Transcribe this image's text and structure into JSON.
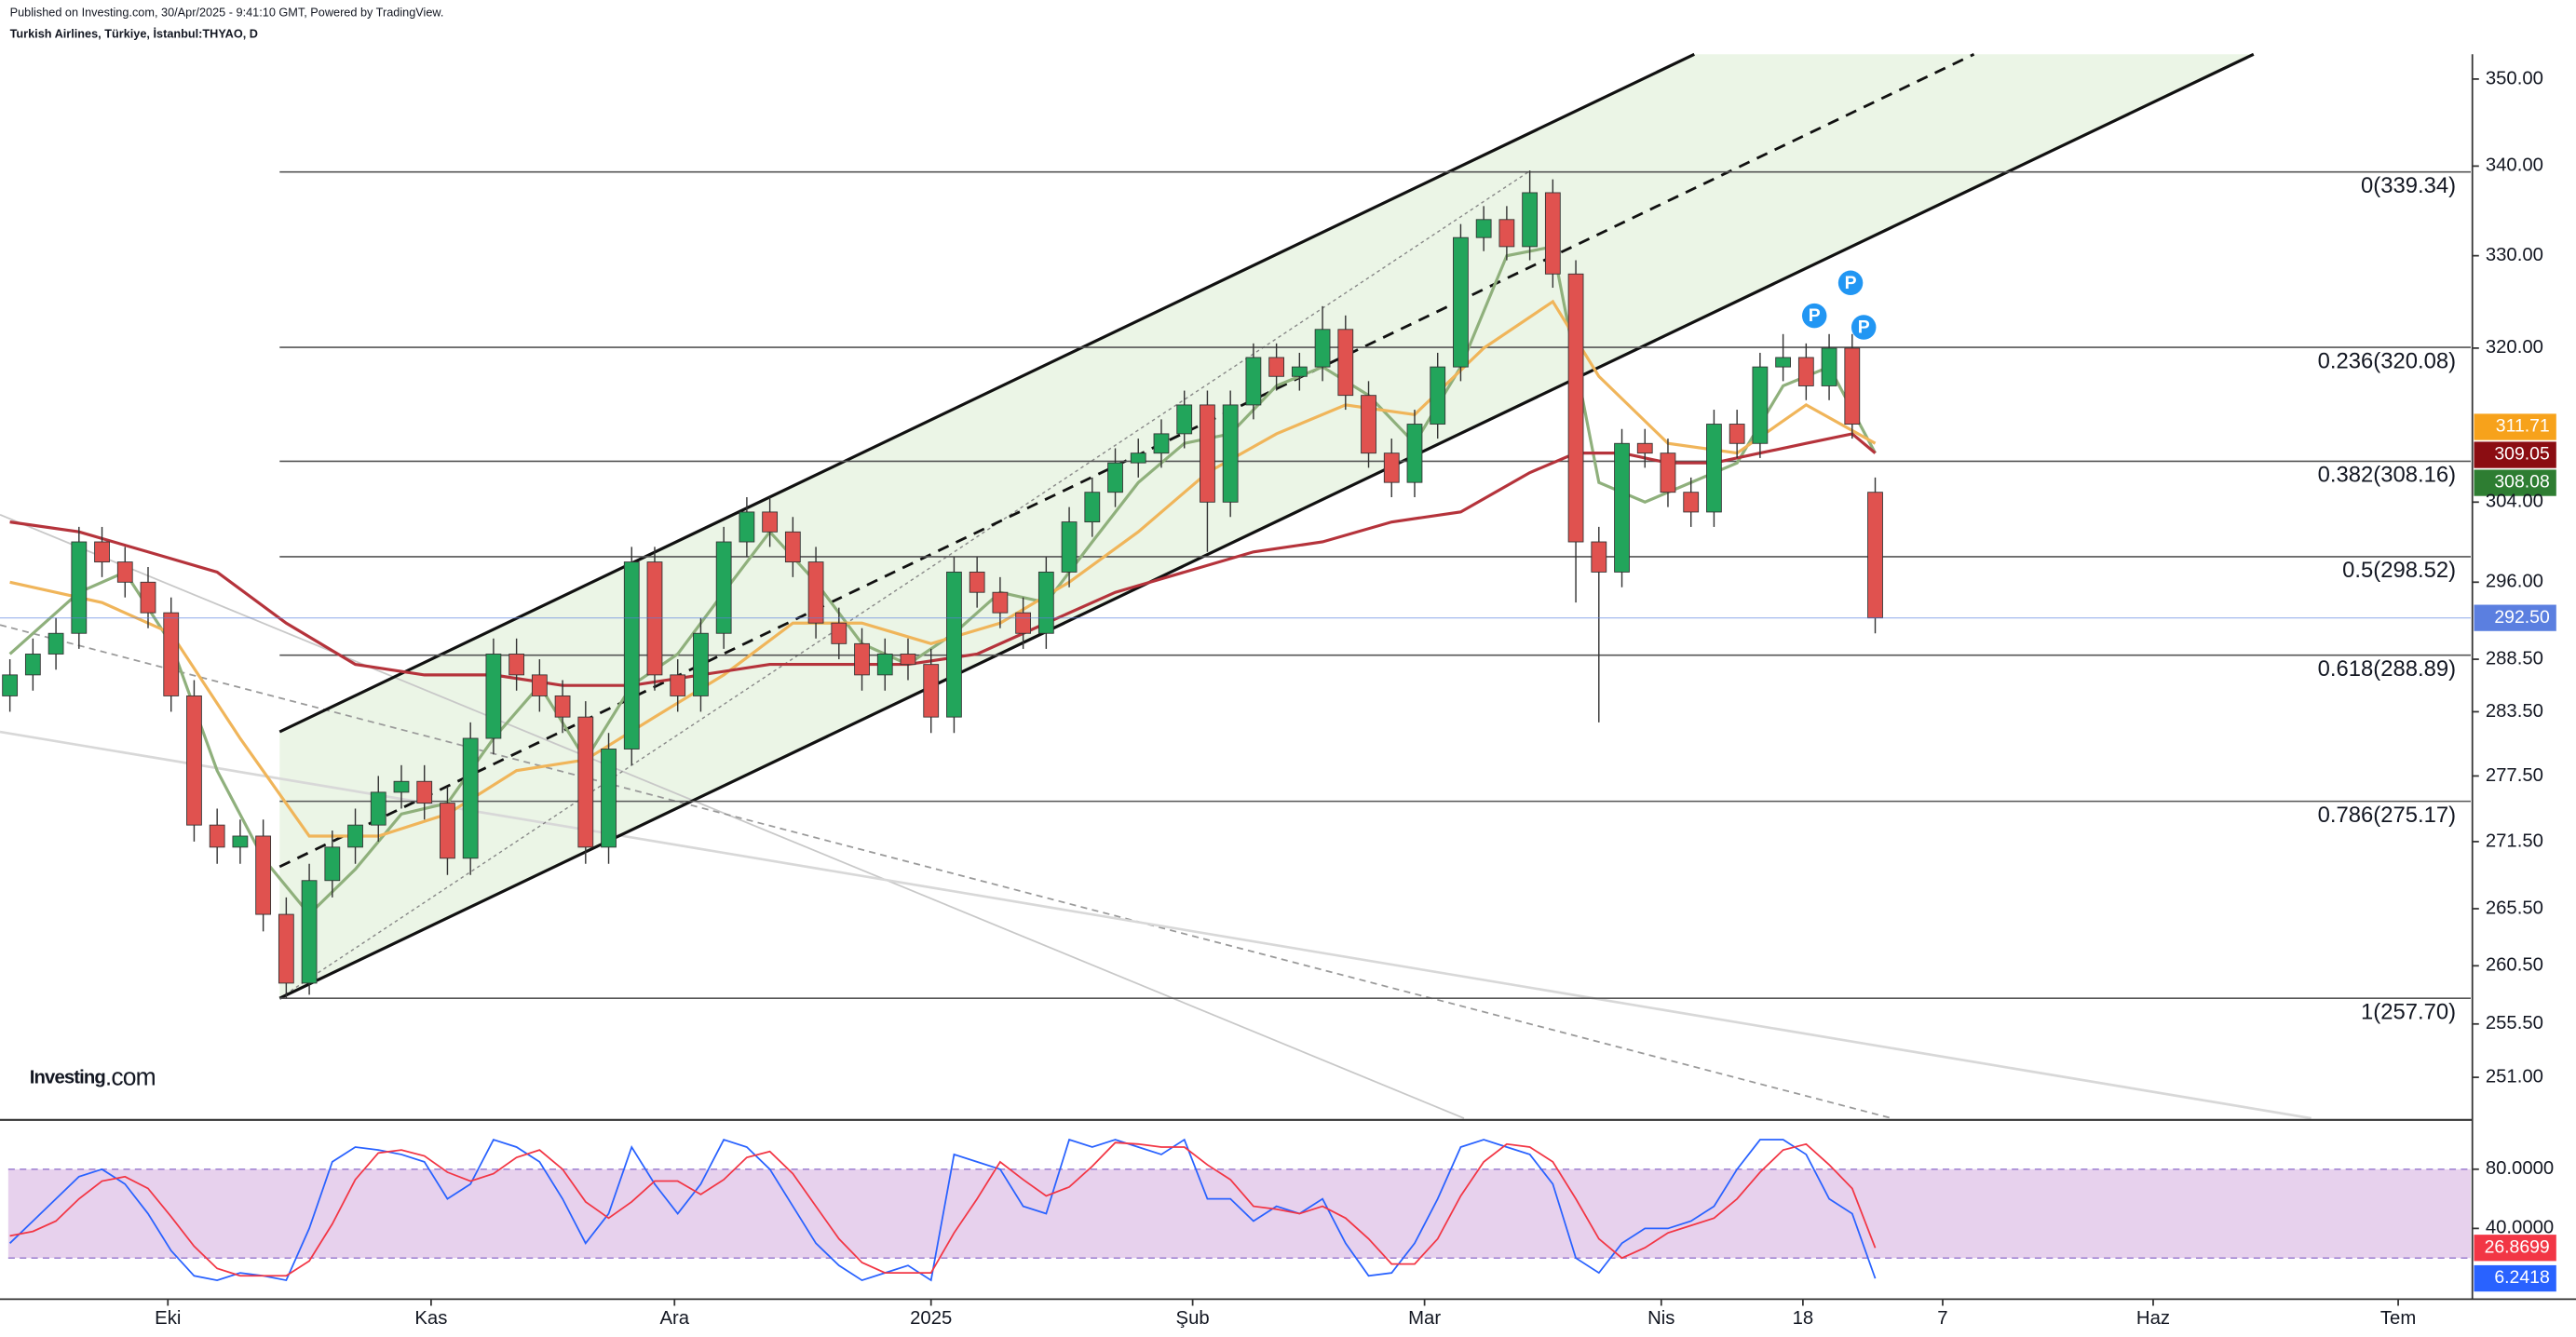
{
  "header": {
    "published": "Published on Investing.com, 30/Apr/2025 - 9:41:10 GMT, Powered by TradingView.",
    "instrument": "Turkish Airlines, Türkiye, İstanbul:THYAO, D"
  },
  "logo": {
    "name": "Investing",
    "suffix": ".com"
  },
  "chart_data": [
    {
      "type": "candlestick",
      "log_scale": true,
      "up_color": "#22a55b",
      "down_color": "#e0524f",
      "xlim": [
        -0.43,
        106.86
      ],
      "ylim": [
        247.6,
        352.9
      ],
      "xticks": [
        {
          "value": 6.86,
          "label": "Eki"
        },
        {
          "value": 18.29,
          "label": "Kas"
        },
        {
          "value": 28.86,
          "label": "Ara"
        },
        {
          "value": 40,
          "label": "2025"
        },
        {
          "value": 51.36,
          "label": "Şub"
        },
        {
          "value": 61.43,
          "label": "Mar"
        },
        {
          "value": 71.71,
          "label": "Nis"
        },
        {
          "value": 77.86,
          "label": "18"
        },
        {
          "value": 83.93,
          "label": "7"
        },
        {
          "value": 93.07,
          "label": "Haz"
        },
        {
          "value": 103.71,
          "label": "Tem"
        }
      ],
      "yticks": [
        {
          "value": 350,
          "label": "350.00"
        },
        {
          "value": 340,
          "label": "340.00"
        },
        {
          "value": 330,
          "label": "330.00"
        },
        {
          "value": 320,
          "label": "320.00"
        },
        {
          "value": 304,
          "label": "304.00"
        },
        {
          "value": 296,
          "label": "296.00"
        },
        {
          "value": 288.5,
          "label": "288.50"
        },
        {
          "value": 283.5,
          "label": "283.50"
        },
        {
          "value": 277.5,
          "label": "277.50"
        },
        {
          "value": 271.5,
          "label": "271.50"
        },
        {
          "value": 265.5,
          "label": "265.50"
        },
        {
          "value": 260.5,
          "label": "260.50"
        },
        {
          "value": 255.5,
          "label": "255.50"
        },
        {
          "value": 251,
          "label": "251.00"
        }
      ],
      "open": [
        285,
        287,
        289,
        291,
        300,
        298,
        296,
        293,
        285,
        273,
        271,
        272,
        265,
        259,
        268,
        271,
        273,
        276,
        277,
        275,
        270,
        281,
        289,
        287,
        285,
        283,
        271,
        280,
        298,
        287,
        285,
        291,
        300,
        303,
        301,
        298,
        292,
        290,
        287,
        289,
        288,
        283,
        297,
        295,
        293,
        291,
        297,
        302,
        305,
        308,
        309,
        311,
        314,
        304,
        314,
        319,
        317,
        318,
        322,
        315,
        309,
        306,
        312,
        318,
        332,
        334,
        331,
        337,
        328,
        300,
        297,
        310,
        309,
        305,
        303,
        312,
        310,
        318,
        319,
        316,
        320,
        305
      ],
      "high": [
        288.5,
        290.5,
        292.5,
        301.5,
        301.5,
        299.5,
        297.5,
        294.5,
        286.5,
        274.5,
        273.5,
        273.5,
        266.5,
        269.5,
        272.5,
        274.5,
        277.5,
        278.5,
        278.5,
        276.5,
        282.5,
        290.5,
        290.5,
        288.5,
        286.5,
        284.5,
        281.5,
        299.5,
        299.5,
        288.5,
        292.5,
        301.5,
        304.5,
        304.5,
        302.5,
        299.5,
        293.5,
        291.5,
        290.5,
        290.5,
        289.5,
        298.5,
        298.5,
        296.5,
        294.5,
        298.5,
        303.5,
        306.5,
        309.5,
        310.5,
        312.5,
        315.5,
        315.5,
        315.5,
        320.5,
        320.5,
        319.5,
        324.5,
        323.5,
        316.5,
        310.5,
        313.5,
        319.5,
        333.5,
        335.5,
        335.5,
        339.5,
        338.5,
        329.5,
        301.5,
        311.5,
        311.5,
        310.5,
        306.5,
        313.5,
        313.5,
        319.5,
        321.5,
        320.5,
        321.5,
        321.5,
        306.5
      ],
      "low": [
        283.5,
        285.5,
        287.5,
        289.5,
        296.5,
        294.5,
        291.5,
        283.5,
        271.5,
        269.5,
        269.5,
        263.5,
        257.7,
        258,
        266.5,
        269.5,
        271.5,
        274.5,
        273.5,
        268.5,
        268.5,
        279.5,
        285.5,
        283.5,
        281.5,
        269.5,
        269.5,
        278.5,
        285.5,
        283.5,
        283.5,
        289.5,
        298.5,
        299.5,
        296.5,
        290.5,
        288.5,
        285.5,
        285.5,
        286.5,
        281.5,
        281.5,
        293.5,
        291.5,
        289.5,
        289.5,
        295.5,
        300.5,
        303.5,
        306.5,
        307.5,
        309.5,
        299,
        302.5,
        312.5,
        315.5,
        315.5,
        316.5,
        313.5,
        307.5,
        304.5,
        304.5,
        310.5,
        316.5,
        330.5,
        329.5,
        329.5,
        326.5,
        294,
        282.5,
        295.5,
        307.5,
        303.5,
        301.5,
        301.5,
        308.5,
        308.5,
        316.5,
        314.5,
        314.5,
        310.5,
        291
      ],
      "close": [
        287,
        289,
        291,
        300,
        298,
        296,
        293,
        285,
        273,
        271,
        272,
        265,
        259,
        268,
        271,
        273,
        276,
        277,
        275,
        270,
        281,
        289,
        287,
        285,
        283,
        271,
        280,
        298,
        287,
        285,
        291,
        300,
        303,
        301,
        298,
        292,
        290,
        287,
        289,
        288,
        283,
        297,
        295,
        293,
        291,
        297,
        302,
        305,
        308,
        309,
        311,
        314,
        304,
        314,
        319,
        317,
        318,
        322,
        315,
        309,
        306,
        312,
        318,
        332,
        334,
        331,
        337,
        328,
        300,
        297,
        310,
        309,
        305,
        303,
        312,
        310,
        318,
        319,
        316,
        320,
        312,
        292.5
      ],
      "lines": [
        {
          "color": "#8fb07c",
          "x": [
            0,
            3,
            5,
            7,
            9,
            11,
            13,
            15,
            17,
            19,
            21,
            23,
            25,
            27,
            29,
            31,
            33,
            35,
            37,
            39,
            41,
            43,
            45,
            47,
            49,
            51,
            53,
            55,
            57,
            59,
            61,
            63,
            65,
            67,
            69,
            71,
            73,
            75,
            77,
            79,
            81
          ],
          "values": [
            289,
            295,
            297,
            290,
            278,
            270,
            265,
            269,
            274,
            275,
            281,
            286,
            279,
            286,
            289,
            295,
            301,
            296,
            290,
            288,
            291,
            295,
            294,
            300,
            306,
            310,
            311,
            316,
            318,
            315,
            310,
            318,
            330,
            331,
            306,
            304,
            306,
            308,
            316,
            318,
            309
          ]
        },
        {
          "color": "#f0b55a",
          "x": [
            0,
            4,
            7,
            10,
            13,
            16,
            19,
            22,
            25,
            28,
            31,
            34,
            37,
            40,
            43,
            46,
            49,
            52,
            55,
            58,
            61,
            64,
            67,
            69,
            72,
            75,
            78,
            81
          ],
          "values": [
            296,
            294,
            291,
            281,
            272,
            272,
            274,
            278,
            279,
            283,
            287,
            292,
            292,
            290,
            292,
            296,
            301,
            307,
            311,
            314,
            313,
            320,
            325,
            317,
            310,
            309,
            314,
            310
          ]
        },
        {
          "color": "#b5333b",
          "x": [
            0,
            3,
            6,
            9,
            12,
            15,
            18,
            21,
            24,
            27,
            30,
            33,
            36,
            39,
            42,
            45,
            48,
            51,
            54,
            57,
            60,
            63,
            66,
            68,
            70,
            72,
            74,
            76,
            78,
            80,
            81
          ],
          "values": [
            302,
            301,
            299,
            297,
            292,
            288,
            287,
            287,
            286,
            286,
            287,
            288,
            288,
            288,
            289,
            292,
            295,
            297,
            299,
            300,
            302,
            303,
            307,
            309,
            309,
            308,
            308,
            309,
            310,
            311,
            309
          ]
        }
      ],
      "fib_levels": [
        {
          "value": 339.34,
          "label": "0(339.34)"
        },
        {
          "value": 320.08,
          "label": "0.236(320.08)"
        },
        {
          "value": 308.16,
          "label": "0.382(308.16)"
        },
        {
          "value": 298.52,
          "label": "0.5(298.52)"
        },
        {
          "value": 288.89,
          "label": "0.618(288.89)"
        },
        {
          "value": 275.17,
          "label": "0.786(275.17)"
        },
        {
          "value": 257.7,
          "label": "1(257.70)"
        }
      ],
      "last_labels": [
        {
          "value": 311.71,
          "label": "311.71",
          "color": "#f7a21b"
        },
        {
          "value": 309.05,
          "label": "309.05",
          "color": "#8b0d12"
        },
        {
          "value": 308.08,
          "label": "308.08",
          "color": "#2e7d32"
        },
        {
          "value": 292.5,
          "label": "292.50",
          "color": "#5b7fe0",
          "show_line": true
        }
      ],
      "markers": [
        "P",
        "P",
        "P"
      ]
    },
    {
      "type": "line",
      "ylim": [
        -7.8,
        112.2
      ],
      "band": [
        20,
        80
      ],
      "band_color": "#e3c9ea",
      "yticks": [
        {
          "value": 80,
          "label": "80.0000"
        },
        {
          "value": 40,
          "label": "40.0000"
        }
      ],
      "series": [
        {
          "color": "#2962ff",
          "values": [
            30,
            45,
            60,
            75,
            80,
            70,
            50,
            25,
            8,
            5,
            10,
            8,
            5,
            40,
            85,
            95,
            93,
            90,
            85,
            60,
            70,
            100,
            95,
            85,
            60,
            30,
            50,
            95,
            70,
            50,
            70,
            100,
            95,
            80,
            55,
            30,
            15,
            5,
            10,
            15,
            5,
            90,
            85,
            80,
            55,
            50,
            100,
            95,
            100,
            95,
            90,
            100,
            60,
            60,
            45,
            55,
            50,
            60,
            30,
            8,
            10,
            30,
            60,
            95,
            100,
            95,
            90,
            70,
            20,
            10,
            30,
            40,
            40,
            45,
            55,
            80,
            100,
            100,
            90,
            60,
            50,
            6.2418
          ]
        },
        {
          "color": "#f23645",
          "values": [
            35,
            38,
            45,
            60,
            72,
            75,
            67,
            48,
            28,
            13,
            8,
            8,
            8,
            18,
            43,
            73,
            91,
            93,
            89,
            78,
            72,
            77,
            88,
            93,
            80,
            58,
            47,
            58,
            72,
            72,
            63,
            73,
            88,
            92,
            77,
            55,
            33,
            17,
            10,
            10,
            10,
            37,
            60,
            85,
            73,
            62,
            68,
            82,
            98,
            97,
            95,
            95,
            83,
            73,
            55,
            53,
            50,
            55,
            47,
            33,
            16,
            16,
            33,
            62,
            85,
            97,
            95,
            85,
            60,
            33,
            20,
            27,
            37,
            42,
            47,
            60,
            78,
            93,
            97,
            83,
            67,
            26.8699
          ]
        }
      ],
      "last_labels": [
        {
          "value": 26.8699,
          "label": "26.8699",
          "color": "#f23645"
        },
        {
          "value": 6.2418,
          "label": "6.2418",
          "color": "#2962ff"
        }
      ]
    }
  ]
}
